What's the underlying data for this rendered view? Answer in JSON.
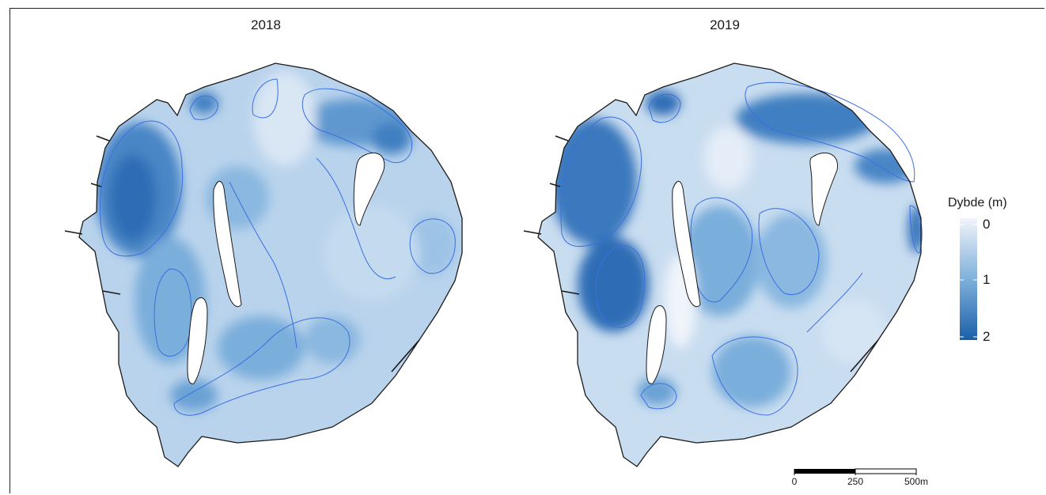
{
  "panels": [
    {
      "title": "2018"
    },
    {
      "title": "2019"
    }
  ],
  "legend": {
    "title": "Dybde (m)",
    "ticks": [
      "0",
      "1",
      "2"
    ],
    "color_min": "#eef2fb",
    "color_mid": "#6ea6d6",
    "color_max": "#1a5fa8"
  },
  "scalebar": {
    "labels": [
      "0",
      "250",
      "500m"
    ]
  },
  "colors": {
    "shoreline": "#1a1a1a",
    "contour": "#3b6fe0",
    "shallow": "#e6eef8",
    "mid": "#a9c9e6",
    "deep": "#3f7fc1"
  }
}
